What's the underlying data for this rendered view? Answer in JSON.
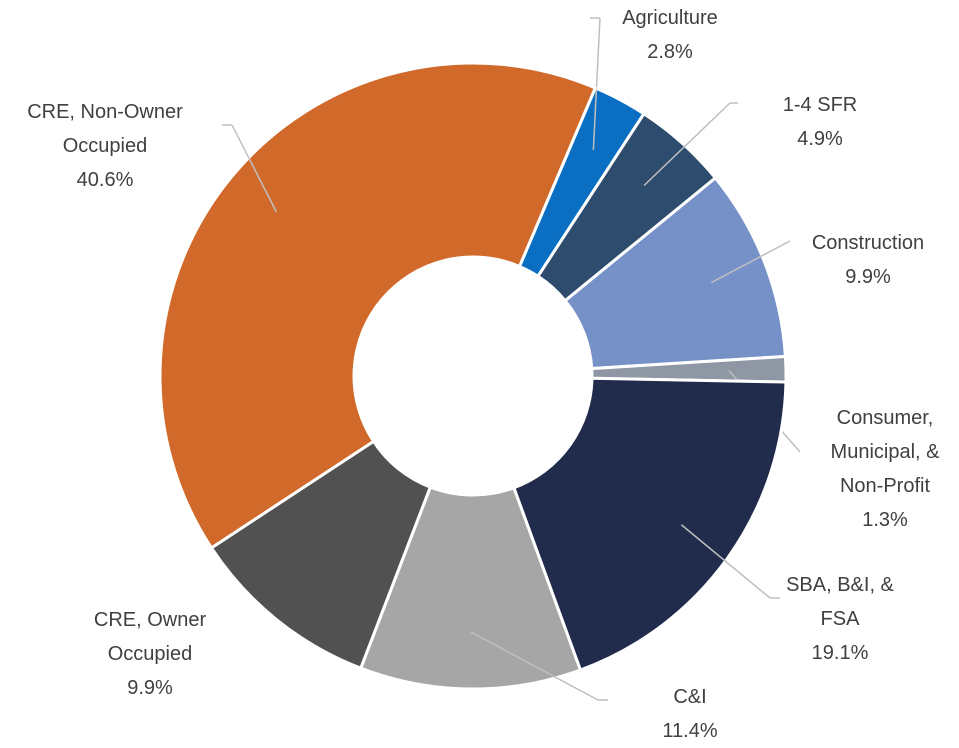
{
  "chart_data": {
    "type": "donut",
    "categories": [
      "Agriculture",
      "1-4 SFR",
      "Construction",
      "Consumer, Municipal, & Non-Profit",
      "SBA, B&I, & FSA",
      "C&I",
      "CRE, Owner Occupied",
      "CRE, Non-Owner Occupied"
    ],
    "values": [
      2.8,
      4.9,
      9.9,
      1.3,
      19.1,
      11.4,
      9.9,
      40.6
    ],
    "value_labels": [
      "2.8%",
      "4.9%",
      "9.9%",
      "1.3%",
      "19.1%",
      "11.4%",
      "9.9%",
      "40.6%"
    ],
    "colors": [
      "#0a6fc2",
      "#2e4d6e",
      "#7591c8",
      "#8e97a3",
      "#212c4c",
      "#a6a6a6",
      "#515151",
      "#d0692a"
    ]
  }
}
